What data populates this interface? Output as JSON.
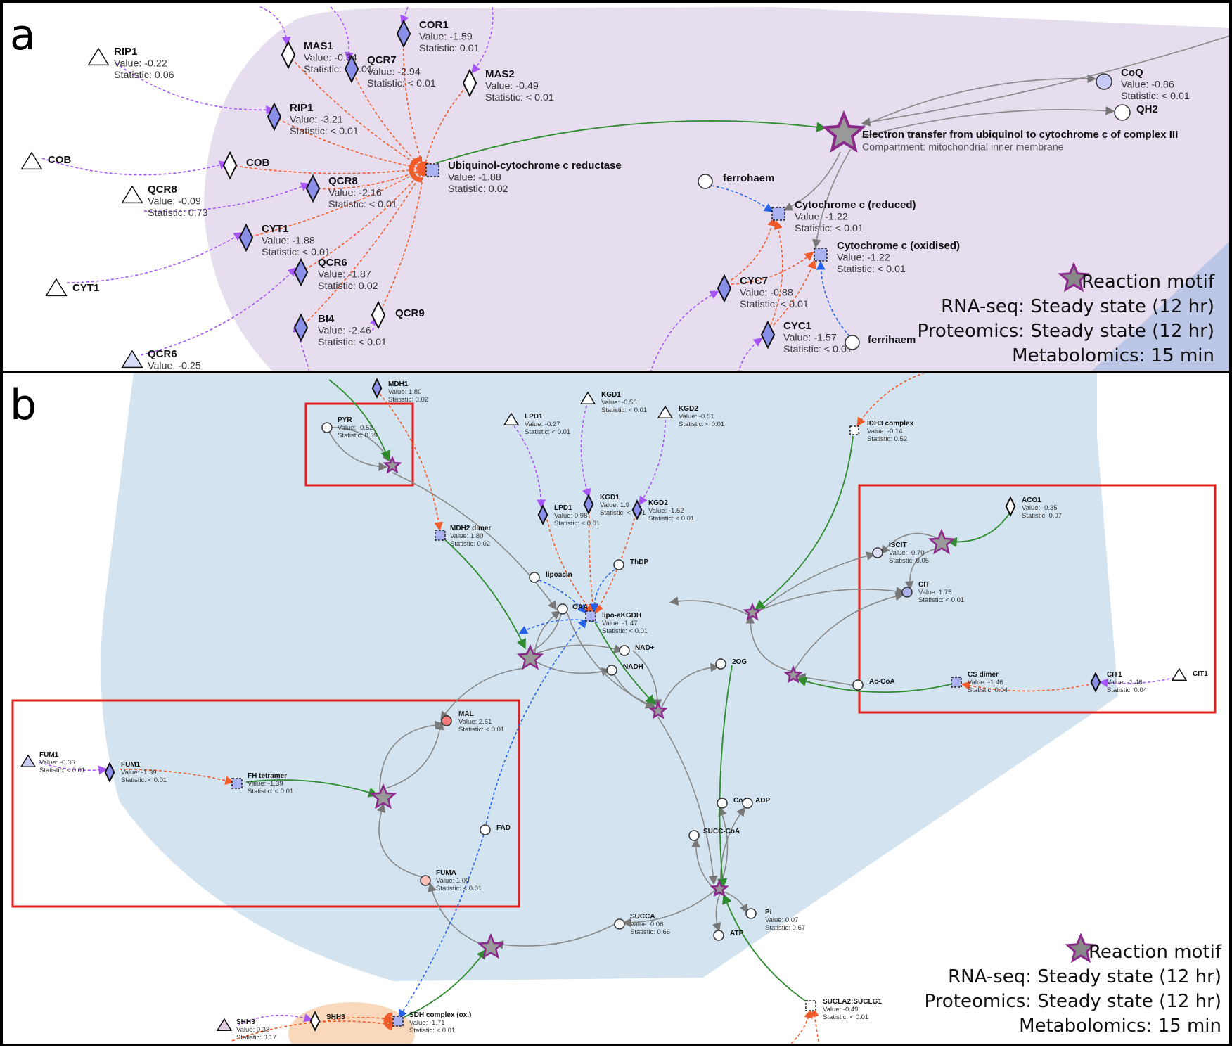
{
  "figure": {
    "panel_a_label": "a",
    "panel_b_label": "b",
    "value_prefix": "Value: ",
    "statistic_prefix": "Statistic: "
  },
  "legend_a": {
    "motif": "Reaction motif",
    "rnaseq": "RNA-seq: Steady state (12 hr)",
    "proteomics": "Proteomics: Steady state (12 hr)",
    "metabolomics": "Metabolomics: 15 min"
  },
  "legend_b": {
    "motif": "Reaction motif",
    "rnaseq": "RNA-seq: Steady state (12 hr)",
    "proteomics": "Proteomics: Steady state (12 hr)",
    "metabolomics": "Metabolomics: 15 min"
  },
  "colors": {
    "compartment_purple": "#e6ddef",
    "compartment_blue": "#d3e4f0",
    "compartment_orange": "#f9d8bc",
    "protein_fill": "#8a8fe8",
    "edge_purple": "#a855f7",
    "edge_orange": "#f25c2a",
    "edge_green": "#2e8b2e",
    "edge_blue": "#2563eb",
    "edge_gray": "#888888",
    "motif_star": "#8b2a8b",
    "highlight_box": "#e0201c"
  },
  "panel_a_nodes": {
    "rip1_gene": {
      "name": "RIP1",
      "value": "-0.22",
      "statistic": "0.06"
    },
    "cob_gene": {
      "name": "COB"
    },
    "qcr8_gene": {
      "name": "QCR8",
      "value": "-0.09",
      "statistic": "0.73"
    },
    "cyt1_gene": {
      "name": "CYT1"
    },
    "qcr6_gene": {
      "name": "QCR6",
      "value": "-0.25"
    },
    "mas1": {
      "name": "MAS1",
      "value": "-0.34",
      "statistic": "< 0.01"
    },
    "qcr7": {
      "name": "QCR7",
      "value": "-2.94",
      "statistic": "< 0.01"
    },
    "cor1": {
      "name": "COR1",
      "value": "-1.59",
      "statistic": "0.01"
    },
    "mas2": {
      "name": "MAS2",
      "value": "-0.49",
      "statistic": "< 0.01"
    },
    "rip1": {
      "name": "RIP1",
      "value": "-3.21",
      "statistic": "< 0.01"
    },
    "cob": {
      "name": "COB"
    },
    "qcr8": {
      "name": "QCR8",
      "value": "-2.16",
      "statistic": "< 0.01"
    },
    "cyt1": {
      "name": "CYT1",
      "value": "-1.88",
      "statistic": "< 0.01"
    },
    "qcr6": {
      "name": "QCR6",
      "value": "-1.87",
      "statistic": "0.02"
    },
    "bi4": {
      "name": "BI4",
      "value": "-2.46",
      "statistic": "< 0.01"
    },
    "qcr9": {
      "name": "QCR9"
    },
    "complex": {
      "name": "Ubiquinol-cytochrome c reductase",
      "value": "-1.88",
      "statistic": "0.02"
    },
    "reaction": {
      "name": "Electron transfer from ubiquinol to cytochrome c of complex III",
      "compartment": "Compartment: mitochondrial inner membrane"
    },
    "coq": {
      "name": "CoQ",
      "value": "-0.86",
      "statistic": "< 0.01"
    },
    "qh2": {
      "name": "QH2"
    },
    "ferrohaem": {
      "name": "ferrohaem"
    },
    "cytc_red": {
      "name": "Cytochrome c (reduced)",
      "value": "-1.22",
      "statistic": "< 0.01"
    },
    "cytc_ox": {
      "name": "Cytochrome c (oxidised)",
      "value": "-1.22",
      "statistic": "< 0.01"
    },
    "cyc7": {
      "name": "CYC7",
      "value": "-0.88",
      "statistic": "< 0.01"
    },
    "cyc1": {
      "name": "CYC1",
      "value": "-1.57",
      "statistic": "< 0.01"
    },
    "ferrihaem": {
      "name": "ferrihaem"
    }
  },
  "panel_b_nodes": {
    "mdh1": {
      "name": "MDH1",
      "value": "1.80",
      "statistic": "0.02"
    },
    "pyr": {
      "name": "PYR",
      "value": "-0.52",
      "statistic": "0.39"
    },
    "lpd1_gene": {
      "name": "LPD1",
      "value": "-0.27",
      "statistic": "< 0.01"
    },
    "kgd1_gene": {
      "name": "KGD1",
      "value": "-0.56",
      "statistic": "< 0.01"
    },
    "kgd2_gene": {
      "name": "KGD2",
      "value": "-0.51",
      "statistic": "< 0.01"
    },
    "idh3": {
      "name": "IDH3 complex",
      "value": "-0.14",
      "statistic": "0.52"
    },
    "lpd1": {
      "name": "LPD1",
      "value": "0.98",
      "statistic": "< 0.01"
    },
    "kgd1": {
      "name": "KGD1",
      "value": "1.9",
      "statistic": "< 0.01"
    },
    "kgd2": {
      "name": "KGD2",
      "value": "-1.52",
      "statistic": "< 0.01"
    },
    "mdh2": {
      "name": "MDH2 dimer",
      "value": "1.80",
      "statistic": "0.02"
    },
    "thdp": {
      "name": "ThDP"
    },
    "lipoacin": {
      "name": "lipoacin"
    },
    "oaa": {
      "name": "OAA"
    },
    "lipo_akgdh": {
      "name": "lipo-aKGDH",
      "value": "-1.47",
      "statistic": "< 0.01"
    },
    "nadp": {
      "name": "NAD+"
    },
    "nadh": {
      "name": "NADH"
    },
    "two_og": {
      "name": "2OG"
    },
    "aco1": {
      "name": "ACO1",
      "value": "-0.35",
      "statistic": "0.07"
    },
    "iscit": {
      "name": "ISCIT",
      "value": "-0.70",
      "statistic": "0.05"
    },
    "cit": {
      "name": "CIT",
      "value": "1.75",
      "statistic": "< 0.01"
    },
    "accoa": {
      "name": "Ac-CoA"
    },
    "cs_dimer": {
      "name": "CS dimer",
      "value": "-1.46",
      "statistic": "0.04"
    },
    "cit1": {
      "name": "CIT1",
      "value": "-1.46",
      "statistic": "0.04"
    },
    "cit1_gene": {
      "name": "CIT1"
    },
    "mal": {
      "name": "MAL",
      "value": "2.61",
      "statistic": "< 0.01"
    },
    "fum1_gene": {
      "name": "FUM1",
      "value": "-0.36",
      "statistic": "< 0.01"
    },
    "fum1": {
      "name": "FUM1",
      "value": "-1.39",
      "statistic": "< 0.01"
    },
    "fh_tetramer": {
      "name": "FH tetramer",
      "value": "-1.39",
      "statistic": "< 0.01"
    },
    "fad": {
      "name": "FAD"
    },
    "fuma": {
      "name": "FUMA",
      "value": "1.00",
      "statistic": "< 0.01"
    },
    "coa": {
      "name": "CoA"
    },
    "adp": {
      "name": "ADP"
    },
    "succ_coa": {
      "name": "SUCC-CoA"
    },
    "succa": {
      "name": "SUCCA",
      "value": "0.06",
      "statistic": "0.66"
    },
    "pi": {
      "name": "Pi",
      "value": "0.07",
      "statistic": "0.67"
    },
    "atp": {
      "name": "ATP"
    },
    "sdh_complex": {
      "name": "SDH complex (ox.)",
      "value": "-1.71",
      "statistic": "< 0.01"
    },
    "shh3_gene": {
      "name": "SHH3",
      "value": "0.38",
      "statistic": "0.17"
    },
    "shh3": {
      "name": "SHH3"
    },
    "sucla": {
      "name": "SUCLA2:SUCLG1",
      "value": "-0.49",
      "statistic": "< 0.01"
    }
  }
}
